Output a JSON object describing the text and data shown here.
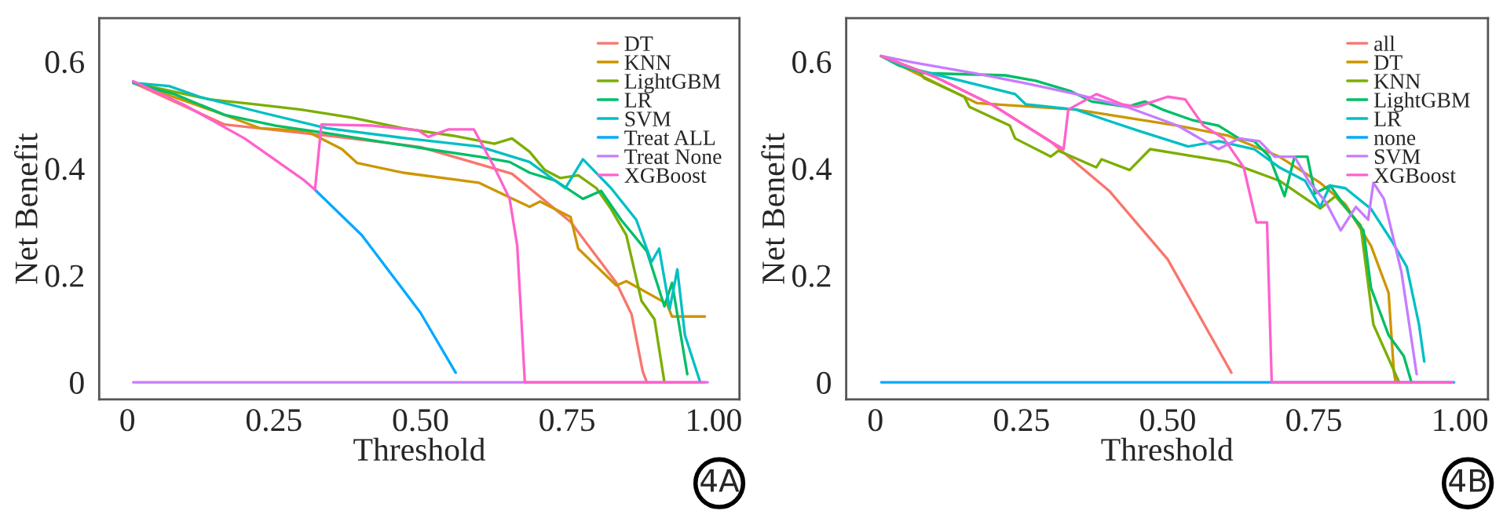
{
  "chart_data": [
    {
      "type": "line",
      "xlabel": "Threshold",
      "ylabel": "Net Benefit",
      "xlim": [
        -0.048,
        1.044
      ],
      "ylim": [
        -0.032,
        0.681
      ],
      "xticks": [
        0,
        {
          "value": 0.25,
          "label": "0.25"
        },
        {
          "value": 0.5,
          "label": "0.50"
        },
        {
          "value": 0.75,
          "label": "0.75"
        },
        {
          "value": 1.0,
          "label": "1.00"
        }
      ],
      "yticks": [
        0,
        0.2,
        0.4,
        0.6
      ],
      "legend": "top right",
      "annotations": [
        "4A"
      ],
      "series": [
        {
          "name": "DT",
          "color": "#f8766d",
          "x": [
            0.01,
            0.166,
            0.35,
            0.5,
            0.656,
            0.756,
            0.834,
            0.86,
            0.879,
            0.886
          ],
          "values": [
            0.56,
            0.482,
            0.46,
            0.44,
            0.39,
            0.3,
            0.186,
            0.127,
            0.02,
            0
          ]
        },
        {
          "name": "KNN",
          "color": "#cd9600",
          "x": [
            0.01,
            0.153,
            0.227,
            0.305,
            0.366,
            0.392,
            0.47,
            0.6,
            0.686,
            0.704,
            0.756,
            0.769,
            0.834,
            0.851,
            0.92,
            0.929,
            0.985
          ],
          "values": [
            0.56,
            0.505,
            0.475,
            0.47,
            0.436,
            0.41,
            0.392,
            0.373,
            0.328,
            0.338,
            0.309,
            0.25,
            0.181,
            0.189,
            0.147,
            0.123,
            0.123
          ]
        },
        {
          "name": "LightGBM",
          "color": "#7cae00",
          "x": [
            0.01,
            0.14,
            0.218,
            0.296,
            0.383,
            0.47,
            0.556,
            0.626,
            0.656,
            0.686,
            0.712,
            0.738,
            0.769,
            0.8,
            0.825,
            0.851,
            0.877,
            0.899,
            0.916
          ],
          "values": [
            0.56,
            0.529,
            0.52,
            0.51,
            0.495,
            0.475,
            0.461,
            0.446,
            0.456,
            0.431,
            0.397,
            0.382,
            0.387,
            0.363,
            0.324,
            0.275,
            0.152,
            0.118,
            0
          ]
        },
        {
          "name": "LR",
          "color": "#00be67",
          "x": [
            0.01,
            0.08,
            0.166,
            0.253,
            0.34,
            0.426,
            0.513,
            0.6,
            0.652,
            0.686,
            0.73,
            0.777,
            0.808,
            0.842,
            0.886,
            0.916,
            0.929,
            0.955
          ],
          "values": [
            0.56,
            0.539,
            0.5,
            0.48,
            0.466,
            0.451,
            0.436,
            0.422,
            0.412,
            0.392,
            0.377,
            0.343,
            0.358,
            0.304,
            0.245,
            0.142,
            0.186,
            0.015
          ]
        },
        {
          "name": "SVM",
          "color": "#00bfc4",
          "x": [
            0.01,
            0.071,
            0.123,
            0.227,
            0.34,
            0.478,
            0.6,
            0.686,
            0.747,
            0.777,
            0.825,
            0.868,
            0.894,
            0.907,
            0.925,
            0.938,
            0.951,
            0.977
          ],
          "values": [
            0.56,
            0.554,
            0.534,
            0.505,
            0.475,
            0.456,
            0.441,
            0.412,
            0.363,
            0.417,
            0.363,
            0.304,
            0.225,
            0.25,
            0.137,
            0.211,
            0.088,
            0
          ]
        },
        {
          "name": "Treat ALL",
          "color": "#00a9ff",
          "x": [
            0.32,
            0.4,
            0.5,
            0.56
          ],
          "values": [
            0.36,
            0.275,
            0.13,
            0.018
          ]
        },
        {
          "name": "Treat None",
          "color": "#c77cff",
          "x": [
            0.01,
            0.99
          ],
          "values": [
            0,
            0
          ]
        },
        {
          "name": "XGBoost",
          "color": "#ff61cc",
          "x": [
            0.01,
            0.1,
            0.2,
            0.3,
            0.32,
            0.331,
            0.418,
            0.496,
            0.513,
            0.548,
            0.591,
            0.626,
            0.652,
            0.665,
            0.678,
            0.985
          ],
          "values": [
            0.563,
            0.517,
            0.456,
            0.379,
            0.36,
            0.482,
            0.48,
            0.471,
            0.459,
            0.473,
            0.473,
            0.402,
            0.343,
            0.255,
            0,
            0
          ]
        }
      ]
    },
    {
      "type": "line",
      "xlabel": "Threshold",
      "ylabel": "Net Benefit",
      "xlim": [
        -0.05,
        1.048
      ],
      "ylim": [
        -0.032,
        0.681
      ],
      "xticks": [
        0,
        {
          "value": 0.25,
          "label": "0.25"
        },
        {
          "value": 0.5,
          "label": "0.50"
        },
        {
          "value": 0.75,
          "label": "0.75"
        },
        {
          "value": 1.0,
          "label": "1.00"
        }
      ],
      "yticks": [
        0,
        0.2,
        0.4,
        0.6
      ],
      "legend": "top right",
      "annotations": [
        "4B"
      ],
      "series": [
        {
          "name": "all",
          "color": "#f8766d",
          "x": [
            0.01,
            0.1,
            0.2,
            0.3,
            0.4,
            0.5,
            0.609
          ],
          "values": [
            0.61,
            0.572,
            0.519,
            0.45,
            0.358,
            0.23,
            0.018
          ]
        },
        {
          "name": "DT",
          "color": "#cd9600",
          "x": [
            0.01,
            0.174,
            0.343,
            0.517,
            0.604,
            0.691,
            0.761,
            0.804,
            0.848,
            0.878,
            0.887,
            0.89
          ],
          "values": [
            0.61,
            0.522,
            0.51,
            0.48,
            0.461,
            0.422,
            0.373,
            0.333,
            0.255,
            0.167,
            0.02,
            0
          ]
        },
        {
          "name": "KNN",
          "color": "#7cae00",
          "x": [
            0.01,
            0.074,
            0.083,
            0.152,
            0.161,
            0.23,
            0.239,
            0.3,
            0.313,
            0.378,
            0.387,
            0.435,
            0.47,
            0.604,
            0.691,
            0.761,
            0.787,
            0.83,
            0.852,
            0.896
          ],
          "values": [
            0.61,
            0.583,
            0.569,
            0.534,
            0.515,
            0.48,
            0.456,
            0.422,
            0.433,
            0.402,
            0.417,
            0.397,
            0.436,
            0.412,
            0.377,
            0.325,
            0.348,
            0.294,
            0.108,
            0
          ]
        },
        {
          "name": "LightGBM",
          "color": "#00be67",
          "x": [
            0.01,
            0.039,
            0.083,
            0.222,
            0.274,
            0.335,
            0.37,
            0.43,
            0.461,
            0.491,
            0.543,
            0.587,
            0.622,
            0.648,
            0.674,
            0.7,
            0.717,
            0.739,
            0.752,
            0.778,
            0.804,
            0.835,
            0.848,
            0.878,
            0.904,
            0.917
          ],
          "values": [
            0.61,
            0.593,
            0.578,
            0.574,
            0.564,
            0.544,
            0.525,
            0.515,
            0.525,
            0.51,
            0.49,
            0.48,
            0.456,
            0.451,
            0.422,
            0.348,
            0.422,
            0.422,
            0.353,
            0.368,
            0.328,
            0.284,
            0.176,
            0.088,
            0.049,
            0
          ]
        },
        {
          "name": "LR",
          "color": "#00bfc4",
          "x": [
            0.01,
            0.057,
            0.239,
            0.257,
            0.343,
            0.396,
            0.448,
            0.535,
            0.587,
            0.648,
            0.691,
            0.735,
            0.761,
            0.778,
            0.804,
            0.848,
            0.883,
            0.909,
            0.93,
            0.939
          ],
          "values": [
            0.61,
            0.588,
            0.539,
            0.52,
            0.51,
            0.49,
            0.471,
            0.441,
            0.451,
            0.436,
            0.402,
            0.377,
            0.328,
            0.368,
            0.363,
            0.324,
            0.265,
            0.216,
            0.108,
            0.039
          ]
        },
        {
          "name": "none",
          "color": "#00a9ff",
          "x": [
            0.01,
            0.99
          ],
          "values": [
            0,
            0
          ]
        },
        {
          "name": "SVM",
          "color": "#c77cff",
          "x": [
            0.01,
            0.065,
            0.17,
            0.257,
            0.343,
            0.43,
            0.517,
            0.587,
            0.622,
            0.657,
            0.683,
            0.717,
            0.743,
            0.77,
            0.796,
            0.822,
            0.843,
            0.852,
            0.87,
            0.9,
            0.926
          ],
          "values": [
            0.61,
            0.598,
            0.578,
            0.559,
            0.539,
            0.515,
            0.48,
            0.436,
            0.456,
            0.451,
            0.422,
            0.422,
            0.373,
            0.338,
            0.284,
            0.328,
            0.304,
            0.373,
            0.343,
            0.206,
            0.015
          ]
        },
        {
          "name": "XGBoost",
          "color": "#ff61cc",
          "x": [
            0.01,
            0.1,
            0.2,
            0.3,
            0.322,
            0.33,
            0.378,
            0.422,
            0.448,
            0.5,
            0.53,
            0.561,
            0.596,
            0.63,
            0.652,
            0.67,
            0.678,
            0.987
          ],
          "values": [
            0.61,
            0.572,
            0.519,
            0.45,
            0.436,
            0.51,
            0.539,
            0.52,
            0.515,
            0.534,
            0.529,
            0.48,
            0.456,
            0.402,
            0.299,
            0.299,
            0,
            0
          ]
        }
      ]
    }
  ]
}
